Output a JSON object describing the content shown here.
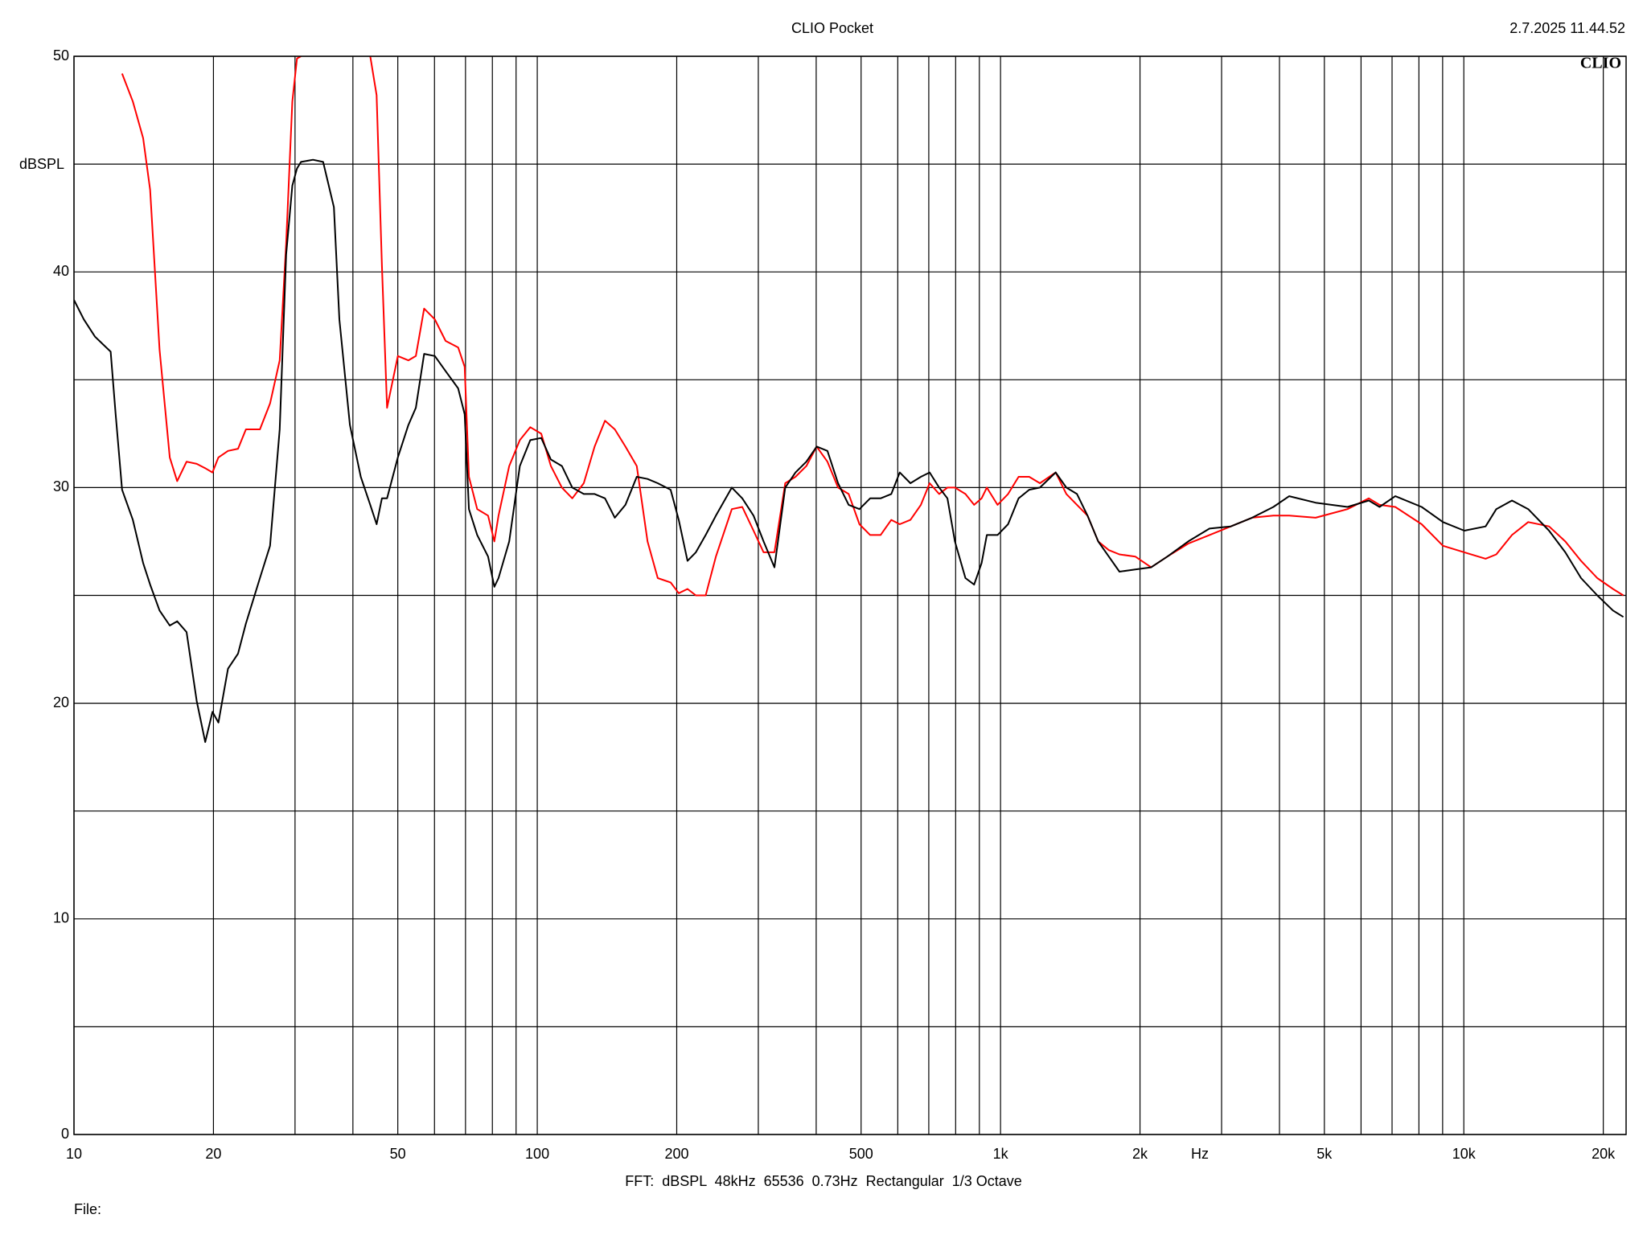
{
  "chart_data": {
    "type": "line",
    "title": "CLIO Pocket",
    "timestamp": "2.7.2025 11.44.52",
    "logo": "CLIO",
    "y_label": "dBSPL",
    "x_label": "Hz",
    "footer": "FFT:  dBSPL  48kHz  65536  0.73Hz  Rectangular  1/3 Octave",
    "file_label": "File:",
    "log_x": true,
    "grid": true,
    "xlim": [
      10,
      22400
    ],
    "ylim": [
      0,
      50
    ],
    "xticks": [
      10,
      20,
      50,
      100,
      200,
      500,
      {
        "value": 1000,
        "label": "1k"
      },
      {
        "value": 2000,
        "label": "2k"
      },
      {
        "value": 5000,
        "label": "5k"
      },
      {
        "value": 10000,
        "label": "10k"
      },
      {
        "value": 20000,
        "label": "20k"
      }
    ],
    "xgrid_minor": [
      30,
      40,
      60,
      70,
      80,
      90,
      300,
      400,
      600,
      700,
      800,
      900,
      3000,
      4000,
      6000,
      7000,
      8000,
      9000
    ],
    "yticks": [
      0,
      10,
      20,
      30,
      40,
      50
    ],
    "ygrid_minor": [
      5,
      15,
      25,
      35,
      45
    ],
    "x": [
      10,
      10.5,
      11.1,
      12.0,
      12.3,
      12.7,
      13.4,
      14.1,
      14.6,
      15.3,
      16.1,
      16.7,
      17.5,
      18.4,
      19.2,
      19.9,
      20.5,
      21.5,
      22.6,
      23.5,
      25.2,
      26.5,
      27.8,
      28.7,
      29.6,
      30.3,
      30.9,
      32.8,
      34.5,
      36.4,
      37.4,
      39.4,
      41.6,
      43.6,
      45.0,
      46.2,
      47.4,
      50.0,
      52.7,
      54.7,
      57.0,
      60.1,
      63.4,
      67.5,
      69.7,
      71.2,
      74.2,
      78.3,
      80.8,
      82.5,
      87.0,
      91.7,
      96.6,
      102,
      107,
      113,
      119,
      126,
      133,
      140,
      147,
      155,
      164,
      173,
      182,
      194,
      202,
      211,
      220,
      231,
      243,
      263,
      277,
      293,
      308,
      325,
      343,
      361,
      381,
      401,
      423,
      446,
      470,
      496,
      523,
      551,
      581,
      606,
      639,
      673,
      703,
      737,
      768,
      797,
      840,
      877,
      910,
      934,
      985,
      1038,
      1094,
      1153,
      1216,
      1315,
      1387,
      1462,
      1541,
      1625,
      1713,
      1806,
      1954,
      2114,
      2291,
      2541,
      2825,
      3141,
      3491,
      3881,
      4198,
      4786,
      5610,
      6237,
      6577,
      7112,
      8110,
      9016,
      10023,
      11143,
      11749,
      12706,
      13772,
      15276,
      16558,
      17905,
      19410,
      20989,
      22100
    ],
    "series": [
      {
        "color": "#000000",
        "values": [
          38.7,
          37.8,
          37.0,
          36.3,
          33.4,
          29.9,
          28.5,
          26.5,
          25.5,
          24.3,
          23.6,
          23.8,
          23.3,
          20.1,
          18.2,
          19.6,
          19.1,
          21.6,
          22.3,
          23.7,
          25.8,
          27.3,
          32.7,
          40.8,
          44.0,
          44.8,
          45.1,
          45.2,
          45.1,
          43.0,
          37.8,
          32.9,
          30.5,
          29.2,
          28.3,
          29.5,
          29.5,
          31.4,
          32.9,
          33.7,
          36.2,
          36.1,
          35.4,
          34.6,
          33.4,
          29.0,
          27.8,
          26.8,
          25.4,
          25.8,
          27.5,
          31.0,
          32.2,
          32.3,
          31.3,
          31.0,
          30.0,
          29.7,
          29.7,
          29.5,
          28.6,
          29.2,
          30.5,
          30.4,
          30.2,
          29.9,
          28.5,
          26.6,
          27.0,
          27.8,
          28.7,
          30.0,
          29.5,
          28.7,
          27.5,
          26.3,
          30.0,
          30.7,
          31.2,
          31.9,
          31.7,
          30.2,
          29.2,
          29.0,
          29.5,
          29.5,
          29.7,
          30.7,
          30.2,
          30.5,
          30.7,
          30.0,
          29.5,
          27.5,
          25.8,
          25.5,
          26.5,
          27.8,
          27.8,
          28.3,
          29.5,
          29.9,
          30.0,
          30.7,
          30.0,
          29.7,
          28.7,
          27.5,
          26.8,
          26.1,
          26.2,
          26.3,
          26.8,
          27.5,
          28.1,
          28.2,
          28.6,
          29.1,
          29.6,
          29.3,
          29.1,
          29.4,
          29.1,
          29.6,
          29.1,
          28.4,
          28.0,
          28.2,
          29.0,
          29.4,
          29.0,
          28.0,
          27.0,
          25.8,
          25.0,
          24.3,
          24.0
        ]
      },
      {
        "color": "#ff0000",
        "values": [
          null,
          null,
          null,
          null,
          null,
          49.2,
          47.9,
          46.2,
          43.8,
          36.4,
          31.4,
          30.3,
          31.2,
          31.1,
          30.9,
          30.7,
          31.4,
          31.7,
          31.8,
          32.7,
          32.7,
          33.9,
          35.9,
          41.3,
          47.9,
          49.9,
          50.0,
          null,
          null,
          null,
          null,
          null,
          null,
          50.0,
          48.2,
          40.3,
          33.7,
          36.1,
          35.9,
          36.1,
          38.3,
          37.8,
          36.8,
          36.5,
          35.6,
          30.5,
          29.0,
          28.7,
          27.5,
          28.7,
          31.0,
          32.2,
          32.8,
          32.5,
          31.0,
          30.0,
          29.5,
          30.2,
          31.9,
          33.1,
          32.7,
          31.9,
          31.0,
          27.5,
          25.8,
          25.6,
          25.1,
          25.3,
          25.0,
          25.0,
          26.8,
          29.0,
          29.1,
          28.0,
          27.0,
          27.0,
          30.2,
          30.5,
          31.0,
          31.9,
          31.2,
          30.0,
          29.7,
          28.3,
          27.8,
          27.8,
          28.5,
          28.3,
          28.5,
          29.2,
          30.2,
          29.7,
          30.0,
          30.0,
          29.7,
          29.2,
          29.5,
          30.0,
          29.2,
          29.7,
          30.5,
          30.5,
          30.2,
          30.7,
          29.7,
          29.2,
          28.7,
          27.5,
          27.1,
          26.9,
          26.8,
          26.3,
          26.8,
          27.4,
          27.8,
          28.2,
          28.6,
          28.7,
          28.7,
          28.6,
          29.0,
          29.5,
          29.2,
          29.1,
          28.3,
          27.3,
          27.0,
          26.7,
          26.9,
          27.8,
          28.4,
          28.2,
          27.5,
          26.6,
          25.8,
          25.3,
          25.0
        ]
      }
    ]
  }
}
